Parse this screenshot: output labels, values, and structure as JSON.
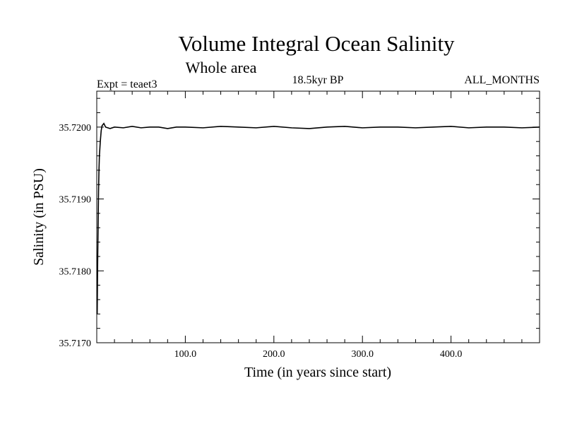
{
  "chart_data": {
    "type": "line",
    "title": "Volume Integral Ocean Salinity",
    "subtitle": "Whole area",
    "experiment": "Expt = teaet3",
    "period": "18.5kyr BP",
    "months": "ALL_MONTHS",
    "xlabel": "Time (in years since start)",
    "ylabel": "Salinity (in PSU)",
    "xlim": [
      0,
      500
    ],
    "ylim": [
      35.717,
      35.7205
    ],
    "xticks": [
      100,
      200,
      300,
      400
    ],
    "xtick_labels": [
      "100.0",
      "200.0",
      "300.0",
      "400.0"
    ],
    "yticks": [
      35.717,
      35.718,
      35.719,
      35.72
    ],
    "ytick_labels": [
      "35.7170",
      "35.7180",
      "35.7190",
      "35.7200"
    ],
    "grid": false,
    "series": [
      {
        "name": "Salinity",
        "x": [
          0.5,
          1,
          1.5,
          2,
          2.5,
          3,
          4,
          5,
          6,
          8,
          10,
          15,
          20,
          30,
          40,
          50,
          60,
          70,
          80,
          90,
          100,
          120,
          140,
          160,
          180,
          200,
          220,
          240,
          260,
          280,
          300,
          320,
          340,
          360,
          380,
          400,
          420,
          440,
          460,
          480,
          500
        ],
        "values": [
          35.7174,
          35.7181,
          35.7186,
          35.7191,
          35.7194,
          35.7196,
          35.7198,
          35.71995,
          35.72002,
          35.72005,
          35.72,
          35.71998,
          35.72,
          35.71999,
          35.72001,
          35.71999,
          35.72,
          35.72,
          35.71998,
          35.72,
          35.72,
          35.71999,
          35.72001,
          35.72,
          35.71999,
          35.72001,
          35.71999,
          35.71998,
          35.72,
          35.72001,
          35.71999,
          35.72,
          35.72,
          35.71999,
          35.72,
          35.72001,
          35.71999,
          35.72,
          35.72,
          35.71999,
          35.72
        ]
      }
    ]
  }
}
